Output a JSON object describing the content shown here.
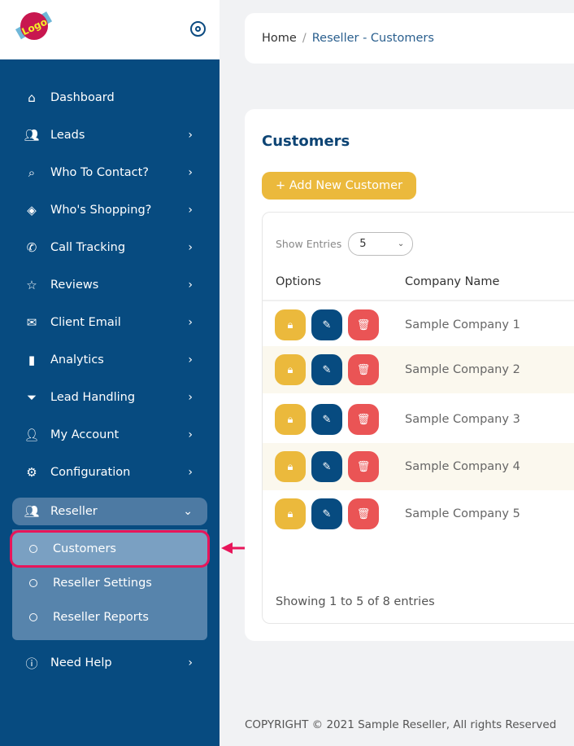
{
  "logo": {
    "text": "Your Logo Here"
  },
  "sidebar": {
    "items": [
      {
        "label": "Dashboard",
        "icon": "home-icon",
        "chev": false
      },
      {
        "label": "Leads",
        "icon": "users-icon",
        "chev": true
      },
      {
        "label": "Who To Contact?",
        "icon": "search-icon",
        "chev": true
      },
      {
        "label": "Who's Shopping?",
        "icon": "layers-icon",
        "chev": true
      },
      {
        "label": "Call Tracking",
        "icon": "phone-icon",
        "chev": true
      },
      {
        "label": "Reviews",
        "icon": "star-icon",
        "chev": true
      },
      {
        "label": "Client Email",
        "icon": "mail-icon",
        "chev": true
      },
      {
        "label": "Analytics",
        "icon": "bar-chart-icon",
        "chev": true
      },
      {
        "label": "Lead Handling",
        "icon": "filter-icon",
        "chev": true
      },
      {
        "label": "My Account",
        "icon": "user-icon",
        "chev": true
      },
      {
        "label": "Configuration",
        "icon": "gear-icon",
        "chev": true
      }
    ],
    "reseller": {
      "label": "Reseller",
      "sub": [
        "Customers",
        "Reseller Settings",
        "Reseller Reports"
      ]
    },
    "help": "Need Help"
  },
  "breadcrumb": {
    "home": "Home",
    "sep": "/",
    "current": "Reseller - Customers"
  },
  "main": {
    "title": "Customers",
    "add_label": "+ Add New Customer",
    "show_entries": "Show Entries",
    "entries_value": "5",
    "columns": [
      "Options",
      "Company Name"
    ],
    "rows": [
      "Sample Company 1",
      "Sample Company 2",
      "Sample Company 3",
      "Sample Company 4",
      "Sample Company 5"
    ],
    "showing": "Showing 1 to 5 of 8 entries"
  },
  "footer": "COPYRIGHT © 2021 Sample Reseller, All rights Reserved",
  "colors": {
    "sidebar": "#074b80",
    "accent_yellow": "#ebb93c",
    "danger": "#ea5455",
    "highlight": "#e8155a"
  }
}
